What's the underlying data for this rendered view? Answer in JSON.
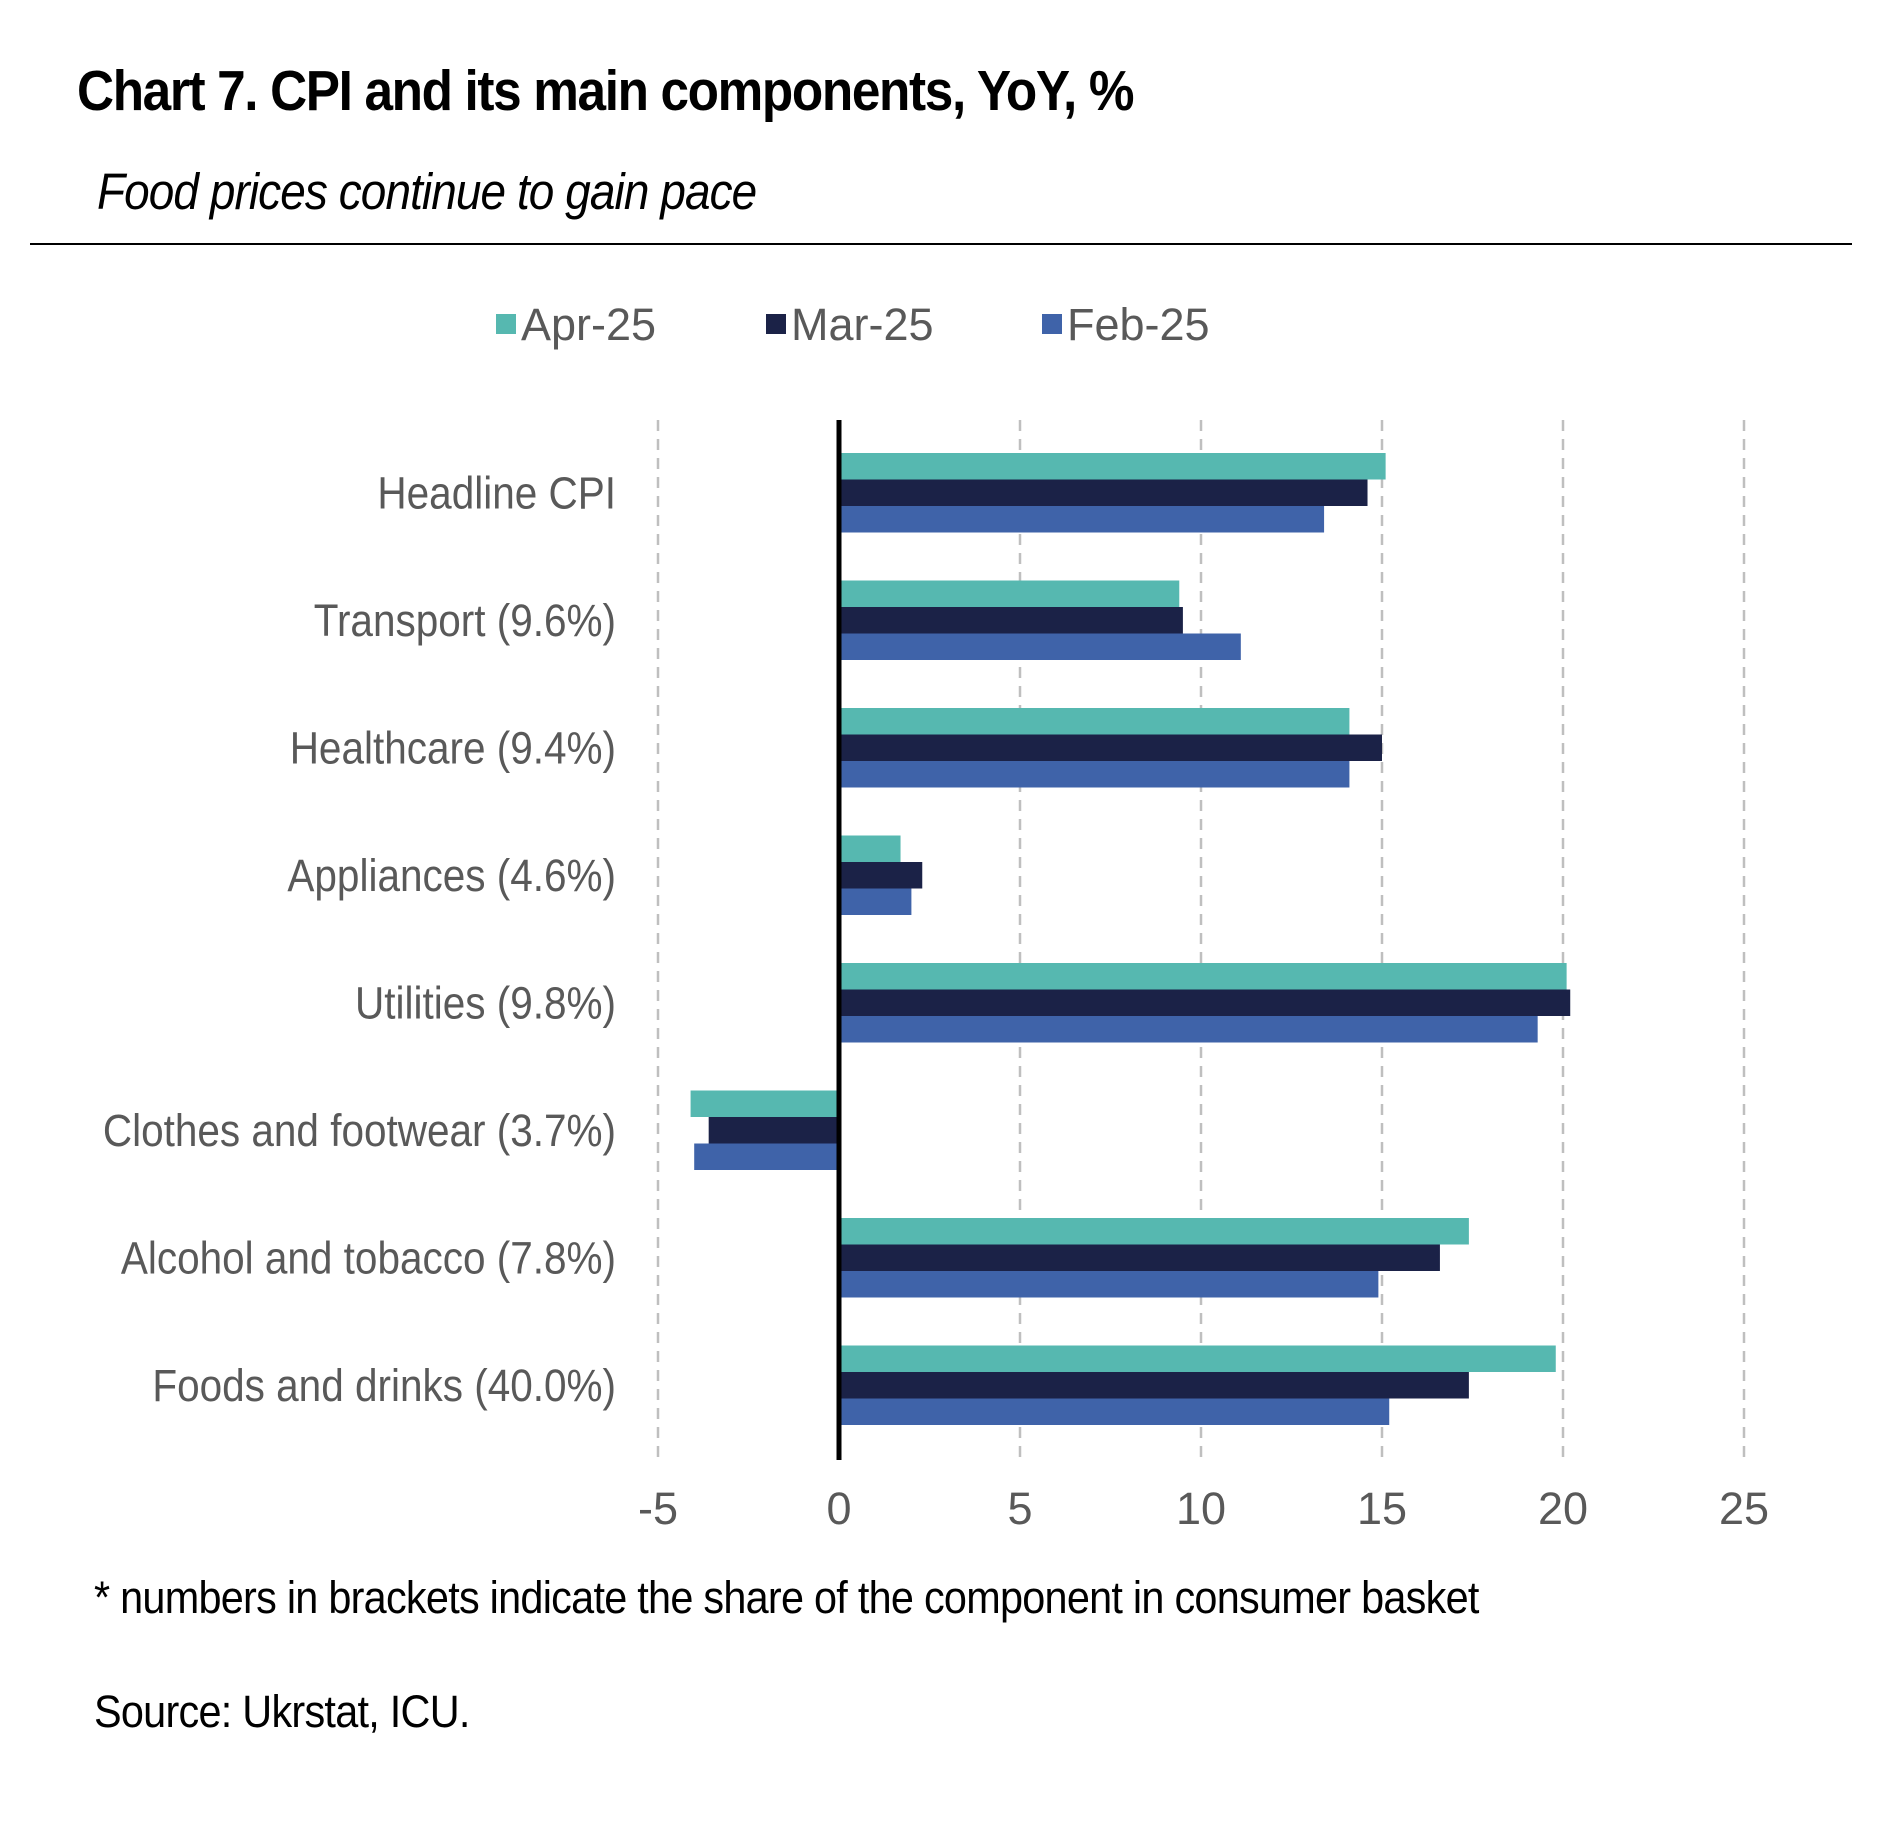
{
  "title": "Chart 7. CPI and its main components, YoY, %",
  "subtitle": "Food prices continue to gain pace",
  "footnote": "* numbers in brackets indicate the share of the component in consumer basket",
  "source": "Source: Ukrstat, ICU.",
  "colors": {
    "apr": "#56b8b0",
    "mar": "#1b2247",
    "feb": "#3f63a9",
    "grid": "#bfbfbf",
    "axis": "#000000",
    "label": "#595959"
  },
  "chart_data": {
    "type": "bar",
    "orientation": "horizontal",
    "categories": [
      "Headline CPI",
      "Transport (9.6%)",
      "Healthcare (9.4%)",
      "Appliances (4.6%)",
      "Utilities (9.8%)",
      "Clothes and footwear (3.7%)",
      "Alcohol and tobacco (7.8%)",
      "Foods and drinks (40.0%)"
    ],
    "series": [
      {
        "name": "Apr-25",
        "color": "#56b8b0",
        "values": [
          15.1,
          9.4,
          14.1,
          1.7,
          20.1,
          -4.1,
          17.4,
          19.8
        ]
      },
      {
        "name": "Mar-25",
        "color": "#1b2247",
        "values": [
          14.6,
          9.5,
          15.0,
          2.3,
          20.2,
          -3.6,
          16.6,
          17.4
        ]
      },
      {
        "name": "Feb-25",
        "color": "#3f63a9",
        "values": [
          13.4,
          11.1,
          14.1,
          2.0,
          19.3,
          -4.0,
          14.9,
          15.2
        ]
      }
    ],
    "xlim": [
      -5,
      25
    ],
    "xticks": [
      -5,
      0,
      5,
      10,
      15,
      20,
      25
    ],
    "xlabel": "",
    "ylabel": "",
    "grid": "vertical-dashed",
    "legend": "top"
  }
}
